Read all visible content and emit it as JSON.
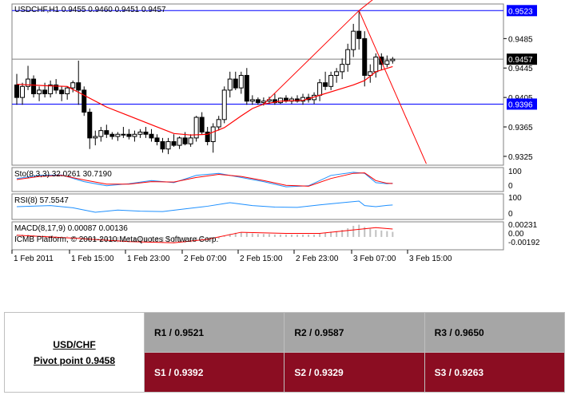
{
  "chart_data": {
    "type": "candlestick",
    "title": "USDCHF,H1  0.9455 0.9460 0.9451 0.9457",
    "price_axis": {
      "ylim": [
        0.9313,
        0.9532
      ],
      "ticks": [
        "0.9485",
        "0.9445",
        "0.9405",
        "0.9365",
        "0.9325"
      ],
      "tick_values": [
        0.9485,
        0.9445,
        0.9405,
        0.9365,
        0.9325
      ],
      "highlight_labels": [
        {
          "text": "0.9523",
          "value": 0.9523,
          "color": "#0000ff"
        },
        {
          "text": "0.9457",
          "value": 0.9457,
          "color": "#000000"
        },
        {
          "text": "0.9396",
          "value": 0.9396,
          "color": "#0000ff"
        }
      ]
    },
    "time_axis": [
      "1 Feb 2011",
      "1 Feb 15:00",
      "1 Feb 23:00",
      "2 Feb 07:00",
      "2 Feb 15:00",
      "2 Feb 23:00",
      "3 Feb 07:00",
      "3 Feb 15:00"
    ],
    "horizontal_lines": [
      {
        "value": 0.9523,
        "color": "#0000ff"
      },
      {
        "value": 0.9457,
        "color": "#808080"
      },
      {
        "value": 0.9396,
        "color": "#0000ff"
      }
    ],
    "candles": [
      [
        0.9422,
        0.9437,
        0.9395,
        0.9405
      ],
      [
        0.9405,
        0.9425,
        0.9395,
        0.942
      ],
      [
        0.942,
        0.9448,
        0.9415,
        0.943
      ],
      [
        0.943,
        0.9435,
        0.9405,
        0.941
      ],
      [
        0.941,
        0.942,
        0.94,
        0.9415
      ],
      [
        0.9415,
        0.9425,
        0.9405,
        0.941
      ],
      [
        0.941,
        0.9428,
        0.9405,
        0.9422
      ],
      [
        0.9422,
        0.943,
        0.941,
        0.9415
      ],
      [
        0.9415,
        0.942,
        0.94,
        0.941
      ],
      [
        0.941,
        0.942,
        0.9402,
        0.9418
      ],
      [
        0.9418,
        0.9428,
        0.9412,
        0.9425
      ],
      [
        0.9425,
        0.9455,
        0.9395,
        0.9415
      ],
      [
        0.9415,
        0.942,
        0.938,
        0.9385
      ],
      [
        0.9385,
        0.939,
        0.9335,
        0.935
      ],
      [
        0.935,
        0.936,
        0.934,
        0.9352
      ],
      [
        0.9352,
        0.9365,
        0.9345,
        0.936
      ],
      [
        0.936,
        0.9368,
        0.935,
        0.9355
      ],
      [
        0.9355,
        0.9358,
        0.9348,
        0.9352
      ],
      [
        0.9352,
        0.9358,
        0.9346,
        0.9355
      ],
      [
        0.9355,
        0.9365,
        0.935,
        0.9355
      ],
      [
        0.9355,
        0.9362,
        0.9348,
        0.9352
      ],
      [
        0.9352,
        0.936,
        0.9345,
        0.9355
      ],
      [
        0.9355,
        0.9362,
        0.935,
        0.9358
      ],
      [
        0.9358,
        0.9365,
        0.935,
        0.9355
      ],
      [
        0.9355,
        0.9362,
        0.9345,
        0.935
      ],
      [
        0.935,
        0.9355,
        0.934,
        0.9345
      ],
      [
        0.9345,
        0.935,
        0.933,
        0.9335
      ],
      [
        0.9335,
        0.935,
        0.9328,
        0.9345
      ],
      [
        0.9345,
        0.9355,
        0.9338,
        0.934
      ],
      [
        0.934,
        0.9352,
        0.9335,
        0.935
      ],
      [
        0.935,
        0.9358,
        0.934,
        0.9342
      ],
      [
        0.9342,
        0.9355,
        0.9338,
        0.935
      ],
      [
        0.935,
        0.938,
        0.9345,
        0.9378
      ],
      [
        0.9378,
        0.9385,
        0.9355,
        0.9358
      ],
      [
        0.9358,
        0.9365,
        0.934,
        0.9345
      ],
      [
        0.9345,
        0.937,
        0.933,
        0.9365
      ],
      [
        0.9365,
        0.938,
        0.936,
        0.9375
      ],
      [
        0.9375,
        0.942,
        0.937,
        0.9415
      ],
      [
        0.9415,
        0.944,
        0.9405,
        0.943
      ],
      [
        0.943,
        0.944,
        0.9415,
        0.9418
      ],
      [
        0.9418,
        0.944,
        0.941,
        0.9435
      ],
      [
        0.9435,
        0.9445,
        0.9395,
        0.94
      ],
      [
        0.94,
        0.9408,
        0.9395,
        0.9402
      ],
      [
        0.9402,
        0.9405,
        0.9395,
        0.9398
      ],
      [
        0.9398,
        0.9405,
        0.9394,
        0.94
      ],
      [
        0.94,
        0.9406,
        0.9396,
        0.9402
      ],
      [
        0.9402,
        0.941,
        0.9395,
        0.9398
      ],
      [
        0.9398,
        0.9405,
        0.9396,
        0.9404
      ],
      [
        0.9404,
        0.9408,
        0.9398,
        0.94
      ],
      [
        0.94,
        0.9406,
        0.9396,
        0.9403
      ],
      [
        0.9403,
        0.9408,
        0.9398,
        0.94
      ],
      [
        0.94,
        0.941,
        0.9395,
        0.9405
      ],
      [
        0.9405,
        0.941,
        0.9398,
        0.9402
      ],
      [
        0.9402,
        0.9412,
        0.9396,
        0.9408
      ],
      [
        0.9408,
        0.943,
        0.94,
        0.9425
      ],
      [
        0.9425,
        0.944,
        0.9415,
        0.942
      ],
      [
        0.942,
        0.944,
        0.9415,
        0.9435
      ],
      [
        0.9435,
        0.9445,
        0.9425,
        0.944
      ],
      [
        0.944,
        0.9458,
        0.943,
        0.945
      ],
      [
        0.945,
        0.9478,
        0.944,
        0.947
      ],
      [
        0.947,
        0.9505,
        0.946,
        0.9495
      ],
      [
        0.9495,
        0.9523,
        0.947,
        0.9485
      ],
      [
        0.9485,
        0.9495,
        0.942,
        0.9435
      ],
      [
        0.9435,
        0.945,
        0.9425,
        0.944
      ],
      [
        0.944,
        0.9465,
        0.9432,
        0.946
      ],
      [
        0.946,
        0.9465,
        0.9442,
        0.945
      ],
      [
        0.945,
        0.9462,
        0.9446,
        0.9455
      ],
      [
        0.9455,
        0.946,
        0.9451,
        0.9457
      ]
    ],
    "ma_line": [
      [
        0,
        0.9423
      ],
      [
        5,
        0.9421
      ],
      [
        9,
        0.942
      ],
      [
        12,
        0.9408
      ],
      [
        16,
        0.9392
      ],
      [
        20,
        0.938
      ],
      [
        25,
        0.9365
      ],
      [
        28,
        0.9356
      ],
      [
        31,
        0.9354
      ],
      [
        34,
        0.9355
      ],
      [
        37,
        0.9364
      ],
      [
        40,
        0.938
      ],
      [
        42,
        0.939
      ],
      [
        44,
        0.9396
      ],
      [
        47,
        0.94
      ],
      [
        51,
        0.9401
      ],
      [
        54,
        0.9408
      ],
      [
        57,
        0.9415
      ],
      [
        60,
        0.9422
      ],
      [
        62,
        0.9428
      ],
      [
        64,
        0.944
      ],
      [
        67,
        0.9447
      ]
    ],
    "trend_lines": [
      {
        "from": [
          44,
          0.9396
        ],
        "to": [
          61,
          0.9523
        ]
      },
      {
        "from": [
          61,
          0.9523
        ],
        "to": [
          63.8,
          0.954
        ]
      },
      {
        "from": [
          61,
          0.9523
        ],
        "to": [
          73,
          0.9315
        ]
      }
    ],
    "indicators": [
      {
        "label": "Sto(8,3,3) 32.0261 30.7190",
        "ticks": [
          "100",
          "0"
        ],
        "ylim": [
          0,
          100
        ],
        "series": [
          {
            "name": "main",
            "color": "#1e90ff",
            "values": [
              [
                0,
                55
              ],
              [
                4,
                70
              ],
              [
                8,
                72
              ],
              [
                12,
                40
              ],
              [
                16,
                20
              ],
              [
                20,
                30
              ],
              [
                24,
                45
              ],
              [
                28,
                35
              ],
              [
                32,
                70
              ],
              [
                36,
                80
              ],
              [
                40,
                60
              ],
              [
                44,
                40
              ],
              [
                48,
                15
              ],
              [
                52,
                20
              ],
              [
                56,
                70
              ],
              [
                60,
                85
              ],
              [
                62,
                80
              ],
              [
                64,
                35
              ],
              [
                66,
                30
              ],
              [
                67,
                32
              ]
            ]
          },
          {
            "name": "signal",
            "color": "#ff0000",
            "values": [
              [
                0,
                50
              ],
              [
                4,
                65
              ],
              [
                8,
                70
              ],
              [
                12,
                48
              ],
              [
                16,
                28
              ],
              [
                20,
                28
              ],
              [
                24,
                40
              ],
              [
                28,
                38
              ],
              [
                32,
                60
              ],
              [
                36,
                75
              ],
              [
                40,
                65
              ],
              [
                44,
                45
              ],
              [
                48,
                22
              ],
              [
                52,
                18
              ],
              [
                56,
                55
              ],
              [
                60,
                80
              ],
              [
                62,
                82
              ],
              [
                64,
                45
              ],
              [
                66,
                32
              ],
              [
                67,
                31
              ]
            ]
          }
        ]
      },
      {
        "label": "RSI(8) 57.5547",
        "ticks": [
          "100",
          "0"
        ],
        "ylim": [
          0,
          100
        ],
        "series": [
          {
            "name": "rsi",
            "color": "#1e90ff",
            "values": [
              [
                0,
                50
              ],
              [
                6,
                55
              ],
              [
                10,
                45
              ],
              [
                14,
                25
              ],
              [
                18,
                35
              ],
              [
                22,
                30
              ],
              [
                26,
                28
              ],
              [
                30,
                40
              ],
              [
                34,
                52
              ],
              [
                38,
                68
              ],
              [
                42,
                55
              ],
              [
                46,
                48
              ],
              [
                50,
                47
              ],
              [
                54,
                58
              ],
              [
                58,
                68
              ],
              [
                61,
                75
              ],
              [
                62,
                55
              ],
              [
                64,
                50
              ],
              [
                66,
                56
              ],
              [
                67,
                57.5547
              ]
            ]
          }
        ]
      },
      {
        "label": "MACD(8,17,9) 0.00087 0.00136",
        "ticks": [
          "0.00231",
          "0.00",
          "-0.00192"
        ],
        "ylim": [
          -0.00192,
          0.00231
        ],
        "series": [
          {
            "name": "signal",
            "color": "#ff0000",
            "values": [
              [
                0,
                0.0003
              ],
              [
                10,
                -0.0002
              ],
              [
                20,
                -0.0008
              ],
              [
                28,
                -0.001
              ],
              [
                34,
                -0.0004
              ],
              [
                40,
                0.0008
              ],
              [
                48,
                0.0006
              ],
              [
                54,
                0.0006
              ],
              [
                60,
                0.0012
              ],
              [
                64,
                0.0016
              ],
              [
                67,
                0.00136
              ]
            ]
          }
        ],
        "histogram": [
          0.0003,
          0.0004,
          0.0004,
          0.0003,
          0.0002,
          0.0002,
          0.0002,
          0.0001,
          0.0001,
          0.0001,
          0.0,
          -0.0001,
          -0.0003,
          -0.0006,
          -0.0008,
          -0.0009,
          -0.0009,
          -0.0009,
          -0.0009,
          -0.0009,
          -0.0009,
          -0.0009,
          -0.0008,
          -0.0008,
          -0.0008,
          -0.0009,
          -0.001,
          -0.001,
          -0.001,
          -0.001,
          -0.001,
          -0.0009,
          -0.0007,
          -0.0006,
          -0.0006,
          -0.0005,
          -0.0003,
          0.0001,
          0.0005,
          0.0007,
          0.0008,
          0.0007,
          0.0006,
          0.0005,
          0.0005,
          0.0005,
          0.0004,
          0.0004,
          0.0004,
          0.0004,
          0.0004,
          0.0004,
          0.0004,
          0.0004,
          0.0006,
          0.0007,
          0.0009,
          0.001,
          0.0012,
          0.0015,
          0.0019,
          0.0021,
          0.0017,
          0.0014,
          0.0012,
          0.0011,
          0.001,
          0.00087
        ],
        "footer": "ICMB Platform, © 2001-2010 MetaQuotes Software Corp."
      }
    ]
  },
  "pivot_table": {
    "pair": "USD/CHF",
    "pivot": "Pivot point 0.9458",
    "resistance": [
      "R1 / 0.9521",
      "R2 / 0.9587",
      "R3 / 0.9650"
    ],
    "support": [
      "S1 / 0.9392",
      "S2 / 0.9329",
      "S3 / 0.9263"
    ]
  }
}
